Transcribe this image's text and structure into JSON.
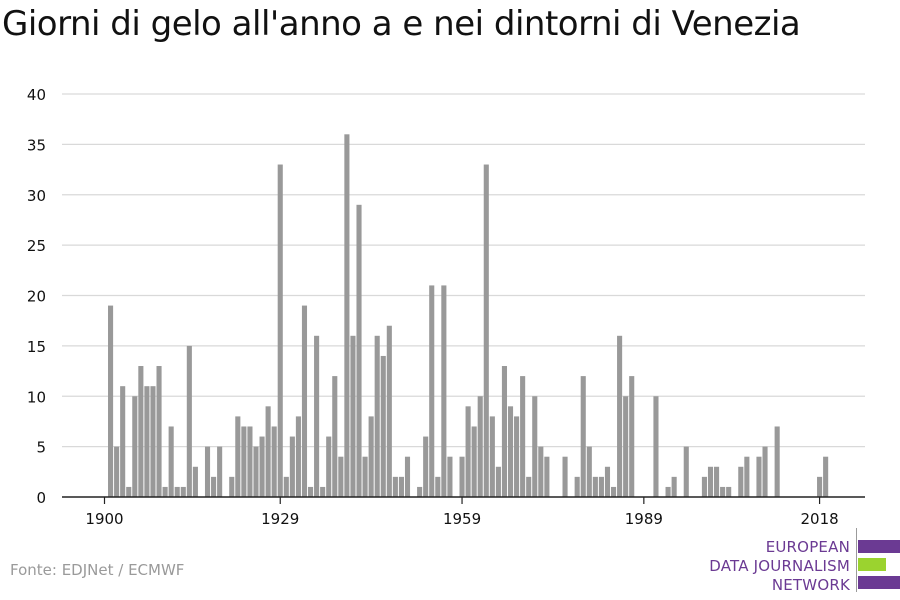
{
  "header": {
    "title": "Giorni di gelo all'anno a e nei dintorni di Venezia"
  },
  "footer": {
    "source": "Fonte: EDJNet / ECMWF"
  },
  "logo": {
    "lines": [
      "EUROPEAN",
      "DATA JOURNALISM",
      "NETWORK"
    ],
    "colors": {
      "purple": "#6b3a93",
      "green": "#9bd32f"
    }
  },
  "colors": {
    "bar": "#999999",
    "grid": "#d9d9d9",
    "axis": "#222222",
    "text": "#111111"
  },
  "chart_data": {
    "type": "bar",
    "title": "Giorni di gelo all'anno a e nei dintorni di Venezia",
    "xlabel": "",
    "ylabel": "",
    "ylim": [
      0,
      40
    ],
    "yticks": [
      0,
      5,
      10,
      15,
      20,
      25,
      30,
      35,
      40
    ],
    "xticks": [
      1900,
      1929,
      1959,
      1989,
      2018
    ],
    "grid": true,
    "x": [
      1900,
      1901,
      1902,
      1903,
      1904,
      1905,
      1906,
      1907,
      1908,
      1909,
      1910,
      1911,
      1912,
      1913,
      1914,
      1915,
      1916,
      1917,
      1918,
      1919,
      1920,
      1921,
      1922,
      1923,
      1924,
      1925,
      1926,
      1927,
      1928,
      1929,
      1930,
      1931,
      1932,
      1933,
      1934,
      1935,
      1936,
      1937,
      1938,
      1939,
      1940,
      1941,
      1942,
      1943,
      1944,
      1945,
      1946,
      1947,
      1948,
      1949,
      1950,
      1951,
      1952,
      1953,
      1954,
      1955,
      1956,
      1957,
      1958,
      1959,
      1960,
      1961,
      1962,
      1963,
      1964,
      1965,
      1966,
      1967,
      1968,
      1969,
      1970,
      1971,
      1972,
      1973,
      1974,
      1975,
      1976,
      1977,
      1978,
      1979,
      1980,
      1981,
      1982,
      1983,
      1984,
      1985,
      1986,
      1987,
      1988,
      1989,
      1990,
      1991,
      1992,
      1993,
      1994,
      1995,
      1996,
      1997,
      1998,
      1999,
      2000,
      2001,
      2002,
      2003,
      2004,
      2005,
      2006,
      2007,
      2008,
      2009,
      2010,
      2011,
      2012,
      2013,
      2014,
      2015,
      2016,
      2017,
      2018,
      2019,
      2020
    ],
    "values": [
      0,
      19,
      5,
      11,
      1,
      10,
      13,
      11,
      11,
      13,
      1,
      7,
      1,
      1,
      15,
      3,
      0,
      5,
      2,
      5,
      0,
      2,
      8,
      7,
      7,
      5,
      6,
      9,
      7,
      33,
      2,
      6,
      8,
      19,
      1,
      16,
      1,
      6,
      12,
      4,
      36,
      16,
      29,
      4,
      8,
      16,
      14,
      17,
      2,
      2,
      4,
      0,
      1,
      6,
      21,
      2,
      21,
      4,
      0,
      4,
      9,
      7,
      10,
      33,
      8,
      3,
      13,
      9,
      8,
      12,
      2,
      10,
      5,
      4,
      0,
      0,
      4,
      0,
      2,
      12,
      5,
      2,
      2,
      3,
      1,
      16,
      10,
      12,
      0,
      0,
      0,
      10,
      0,
      1,
      2,
      0,
      5,
      0,
      0,
      2,
      3,
      3,
      1,
      1,
      0,
      3,
      4,
      0,
      4,
      5,
      0,
      7,
      0,
      0,
      0,
      0,
      0,
      0,
      2,
      4,
      0
    ]
  }
}
